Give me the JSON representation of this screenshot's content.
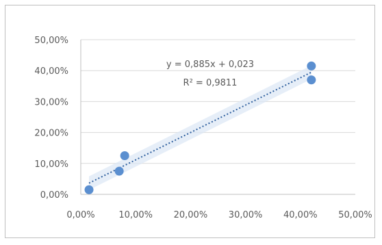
{
  "chart_data": {
    "type": "scatter",
    "title": "",
    "xlabel": "",
    "ylabel": "",
    "xlim": [
      0,
      50
    ],
    "ylim": [
      0,
      50
    ],
    "x_ticks": [
      "0,00%",
      "10,00%",
      "20,00%",
      "30,00%",
      "40,00%",
      "50,00%"
    ],
    "y_ticks": [
      "0,00%",
      "10,00%",
      "20,00%",
      "30,00%",
      "40,00%",
      "50,00%"
    ],
    "grid": "horizontal",
    "series": [
      {
        "x": [
          1.5,
          7.0,
          8.0,
          42.0,
          42.0
        ],
        "y": [
          1.5,
          7.5,
          12.5,
          41.5,
          37.0
        ]
      }
    ],
    "trendline": {
      "type": "linear",
      "slope": 0.885,
      "intercept": 0.023,
      "equation": "y = 0,885x + 0,023",
      "r_squared": "R² = 0,9811"
    },
    "colors": {
      "marker": "#5b8fd0",
      "trendline": "#2e5f9e",
      "confidence_band": "#dbe7f5",
      "grid": "#d9d9d9",
      "axis": "#bfbfbf",
      "text": "#595959"
    }
  }
}
